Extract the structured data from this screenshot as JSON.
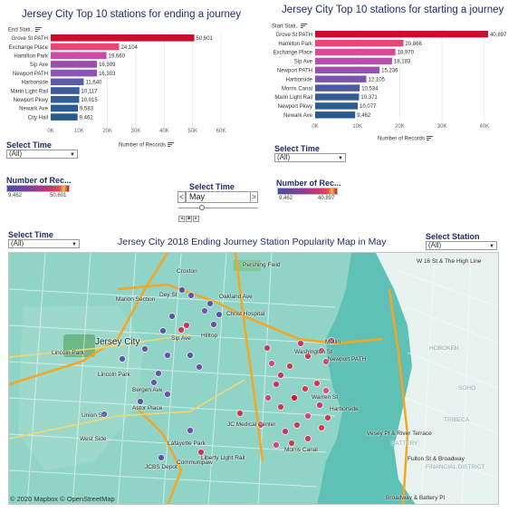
{
  "end_chart": {
    "title": "Jersey City Top 10 stations for ending a journey",
    "dim_header": "End Stati..",
    "measure_label": "Number of Records",
    "color_range": [
      "#1f4e8c",
      "#c8102e"
    ]
  },
  "start_chart": {
    "title": "Jersey City Top 10 stations for starting a journey",
    "dim_header": "Start Stati..",
    "measure_label": "Number of Records"
  },
  "chart_data": [
    {
      "type": "bar",
      "orientation": "horizontal",
      "title": "Jersey City Top 10 stations for ending a journey",
      "xlabel": "Number of Records",
      "xlim": [
        0,
        60000
      ],
      "ticks": [
        "0K",
        "10K",
        "20K",
        "30K",
        "40K",
        "50K",
        "60K"
      ],
      "categories": [
        "Grove St PATH",
        "Exchange Place",
        "Hamilton Park",
        "Sip Ave",
        "Newport PATH",
        "Harborside",
        "Marin Light Rail",
        "Newport Pkwy",
        "Newark Ave",
        "City Hall"
      ],
      "values": [
        50601,
        24104,
        19660,
        16309,
        16303,
        11640,
        10117,
        10015,
        9583,
        9462
      ],
      "labels": [
        "50,601",
        "24,104",
        "19,660",
        "16,309",
        "16,303",
        "11,640",
        "10,117",
        "10,015",
        "9,583",
        "9,462"
      ],
      "colors": [
        "#c8102e",
        "#e8457a",
        "#d04aa8",
        "#9a4eb0",
        "#8a55b5",
        "#5a5ca8",
        "#3a5a9c",
        "#2f5d94",
        "#2a5b90",
        "#285a8e"
      ]
    },
    {
      "type": "bar",
      "orientation": "horizontal",
      "title": "Jersey City Top 10 stations for starting a journey",
      "xlabel": "Number of Records",
      "xlim": [
        0,
        40897
      ],
      "ticks": [
        "0K",
        "10K",
        "20K",
        "30K",
        "40K"
      ],
      "categories": [
        "Grove St PATH",
        "Hamilton Park",
        "Exchange Place",
        "Sip Ave",
        "Newport PATH",
        "Harborside",
        "Morris Canal",
        "Marin Light Rail",
        "Newport Pkwy",
        "Newark Ave"
      ],
      "values": [
        40897,
        20866,
        18970,
        18183,
        15236,
        12105,
        10534,
        10371,
        10077,
        9462
      ],
      "labels": [
        "40,897",
        "20,866",
        "18,970",
        "18,183",
        "15,236",
        "12,105",
        "10,534",
        "10,371",
        "10,077",
        "9,462"
      ],
      "colors": [
        "#c8102e",
        "#e8457a",
        "#d84a95",
        "#b84ea8",
        "#9a50b0",
        "#7a55b0",
        "#4a5a9e",
        "#335c96",
        "#2d5c92",
        "#285a8e"
      ]
    }
  ],
  "filters": {
    "select_time_label": "Select Time",
    "select_time_value": "(All)",
    "select_time2_label": "Select Time",
    "select_time2_value": "(All)",
    "map_time_label": "Select Time",
    "map_time_value": "(All)",
    "station_label": "Select Station",
    "station_value": "(All)"
  },
  "legends": {
    "end": {
      "title": "Number of Rec...",
      "min": "9,462",
      "max": "50,601"
    },
    "start": {
      "title": "Number of Rec...",
      "min": "9,462",
      "max": "40,897"
    }
  },
  "pager": {
    "label": "Select Time",
    "value": "May",
    "prev": "<",
    "next": ">"
  },
  "map": {
    "title": "Jersey City 2018  Ending Journey Station Popularity Map in May",
    "credit": "© 2020 Mapbox © OpenStreetMap",
    "labels": {
      "pershing": "Pershing Field",
      "croxton": "Croxton",
      "dey": "Dey St",
      "marion": "Marion Section",
      "oakland": "Oakland Ave",
      "christ": "Christ Hospital",
      "jersey_city": "Jersey City",
      "sip": "Sip Ave",
      "hilltop": "Hilltop",
      "lincoln_park_area": "Lincoln Park",
      "lincoln_park": "Lincoln Park",
      "bergen": "Bergen Ave",
      "astor": "Astor Place",
      "union": "Union St",
      "west_side": "West Side",
      "lafayette": "Lafayette Park",
      "jcbs": "JCBS Depot",
      "communipaw": "Communipaw",
      "liberty": "Liberty Light Rail",
      "jc_medical": "JC Medical Center",
      "morris": "Morris Canal",
      "harborside": "Harborside",
      "warren": "Warren St",
      "washington": "Washington St",
      "newport": "Newport PATH",
      "w16": "W 16 St & The High Line",
      "vesey": "Vesey Pl & River Terrace",
      "fulton": "Fulton St & Broadway",
      "broadway": "Broadway & Battery Pl",
      "battery": "BATTERY",
      "financial": "FINANCIAL DISTRICT",
      "tribeca": "TRIBECA",
      "soho": "SOHO",
      "hoboken": "HOBOKEN",
      "mullin": "Mullin"
    }
  }
}
